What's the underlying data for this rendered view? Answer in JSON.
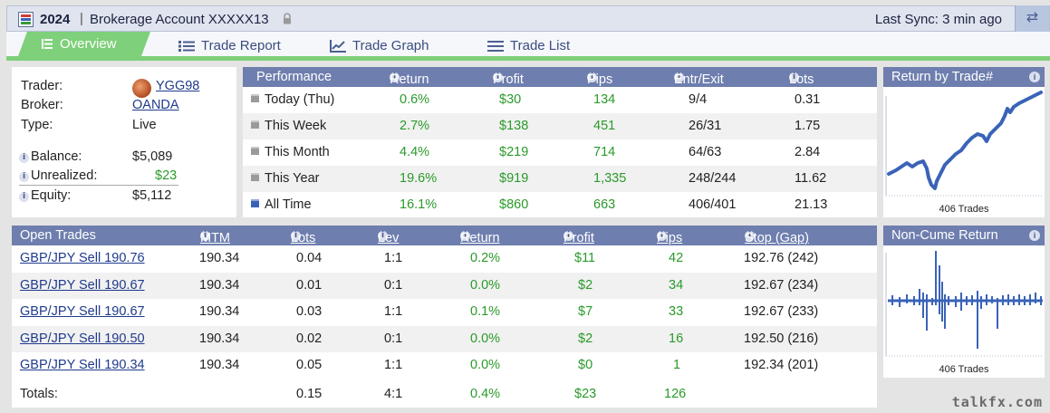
{
  "colors": {
    "header_bg": "#6e7eae",
    "tab_active": "#7ed07a",
    "positive": "#2a9a2a",
    "link": "#1f3a8c"
  },
  "topbar": {
    "year": "2024",
    "separator": "|",
    "account_title": "Brokerage Account XXXXX13",
    "last_sync": "Last Sync: 3 min ago",
    "sync_icon": "sync-arrows-icon"
  },
  "tabs": [
    {
      "label": "Overview",
      "icon": "list-icon",
      "active": true
    },
    {
      "label": "Trade Report",
      "icon": "bullet-list-icon"
    },
    {
      "label": "Trade Graph",
      "icon": "line-chart-icon"
    },
    {
      "label": "Trade List",
      "icon": "lines-icon"
    }
  ],
  "account": {
    "trader_label": "Trader:",
    "trader": "YGG98",
    "broker_label": "Broker:",
    "broker": "OANDA",
    "type_label": "Type:",
    "type": "Live",
    "balance_label": "Balance:",
    "balance": "$5,089",
    "unrealized_label": "Unrealized:",
    "unrealized": "$23",
    "equity_label": "Equity:",
    "equity": "$5,112"
  },
  "performance": {
    "headers": [
      "Performance",
      "Return",
      "Profit",
      "Pips",
      "Entr/Exit",
      "Lots"
    ],
    "rows": [
      {
        "period": "Today (Thu)",
        "return": "0.6%",
        "profit": "$30",
        "pips": "134",
        "entr_exit": "9/4",
        "lots": "0.31"
      },
      {
        "period": "This Week",
        "return": "2.7%",
        "profit": "$138",
        "pips": "451",
        "entr_exit": "26/31",
        "lots": "1.75"
      },
      {
        "period": "This Month",
        "return": "4.4%",
        "profit": "$219",
        "pips": "714",
        "entr_exit": "64/63",
        "lots": "2.84"
      },
      {
        "period": "This Year",
        "return": "19.6%",
        "profit": "$919",
        "pips": "1,335",
        "entr_exit": "248/244",
        "lots": "11.62"
      },
      {
        "period": "All Time",
        "return": "16.1%",
        "profit": "$860",
        "pips": "663",
        "entr_exit": "406/401",
        "lots": "21.13"
      }
    ]
  },
  "open_trades": {
    "headers": [
      "Open Trades",
      "MTM",
      "Lots",
      "Lev",
      "Return",
      "Profit",
      "Pips",
      "Stop (Gap)"
    ],
    "rows": [
      {
        "trade": "GBP/JPY Sell 190.76",
        "mtm": "190.34",
        "lots": "0.04",
        "lev": "1:1",
        "return": "0.2%",
        "profit": "$11",
        "pips": "42",
        "stop": "192.76 (242)"
      },
      {
        "trade": "GBP/JPY Sell 190.67",
        "mtm": "190.34",
        "lots": "0.01",
        "lev": "0:1",
        "return": "0.0%",
        "profit": "$2",
        "pips": "34",
        "stop": "192.67 (234)"
      },
      {
        "trade": "GBP/JPY Sell 190.67",
        "mtm": "190.34",
        "lots": "0.03",
        "lev": "1:1",
        "return": "0.1%",
        "profit": "$7",
        "pips": "33",
        "stop": "192.67 (233)"
      },
      {
        "trade": "GBP/JPY Sell 190.50",
        "mtm": "190.34",
        "lots": "0.02",
        "lev": "0:1",
        "return": "0.0%",
        "profit": "$2",
        "pips": "16",
        "stop": "192.50 (216)"
      },
      {
        "trade": "GBP/JPY Sell 190.34",
        "mtm": "190.34",
        "lots": "0.05",
        "lev": "1:1",
        "return": "0.0%",
        "profit": "$0",
        "pips": "1",
        "stop": "192.34 (201)"
      }
    ],
    "totals": {
      "label": "Totals:",
      "lots": "0.15",
      "lev": "4:1",
      "return": "0.4%",
      "profit": "$23",
      "pips": "126"
    }
  },
  "return_by_trade": {
    "title": "Return by Trade#",
    "footer": "406 Trades"
  },
  "non_cume_return": {
    "title": "Non-Cume Return",
    "footer": "406 Trades"
  },
  "watermark": "talkfx.com"
}
